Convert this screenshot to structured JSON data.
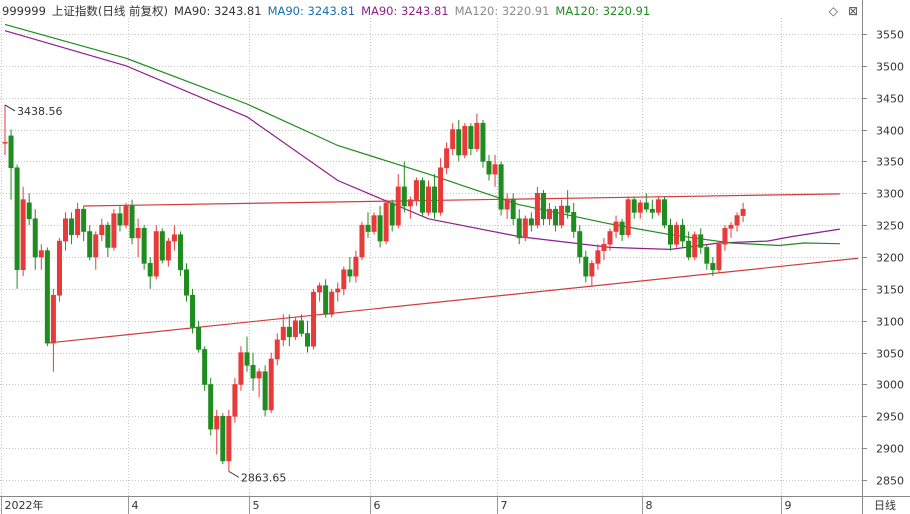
{
  "header": {
    "code": "999999",
    "name": "上证指数(日线 前复权)",
    "indicators": [
      {
        "label": "MA90: 3243.81",
        "color": "#333333"
      },
      {
        "label": "MA90: 3243.81",
        "color": "#1a6fb0"
      },
      {
        "label": "MA90: 3243.81",
        "color": "#8e1f8e"
      },
      {
        "label": "MA120: 3220.91",
        "color": "#8c8c8c"
      },
      {
        "label": "MA120: 3220.91",
        "color": "#1e8c1e"
      }
    ],
    "icons": [
      "diamond-icon",
      "close-icon"
    ]
  },
  "period_label": "日线",
  "chart_data": {
    "type": "candlestick",
    "ylim": [
      2825,
      3575
    ],
    "y_ticks": [
      2850,
      2900,
      2950,
      3000,
      3050,
      3100,
      3150,
      3200,
      3250,
      3300,
      3350,
      3400,
      3450,
      3500,
      3550
    ],
    "x_ticks": [
      "2022年",
      "4",
      "5",
      "6",
      "7",
      "8",
      "9"
    ],
    "x_tick_index": [
      0,
      21,
      41,
      61,
      82,
      106,
      129
    ],
    "bull_color": "#e83a3a",
    "bear_color": "#1e8c1e",
    "annotations": [
      {
        "text": "3438.56",
        "index": 0,
        "value": 3438.56
      },
      {
        "text": "2863.65",
        "index": 37,
        "value": 2863.65
      }
    ],
    "ohlc": [
      [
        3380,
        3438.56,
        3360,
        3380
      ],
      [
        3390,
        3400,
        3290,
        3340
      ],
      [
        3340,
        3345,
        3150,
        3180
      ],
      [
        3180,
        3310,
        3170,
        3290
      ],
      [
        3285,
        3300,
        3250,
        3260
      ],
      [
        3260,
        3275,
        3180,
        3200
      ],
      [
        3200,
        3220,
        3180,
        3210
      ],
      [
        3210,
        3215,
        3060,
        3065
      ],
      [
        3065,
        3150,
        3020,
        3140
      ],
      [
        3140,
        3230,
        3130,
        3225
      ],
      [
        3225,
        3270,
        3210,
        3260
      ],
      [
        3260,
        3270,
        3220,
        3235
      ],
      [
        3235,
        3285,
        3230,
        3275
      ],
      [
        3275,
        3280,
        3225,
        3240
      ],
      [
        3240,
        3250,
        3195,
        3200
      ],
      [
        3200,
        3240,
        3180,
        3235
      ],
      [
        3235,
        3260,
        3225,
        3250
      ],
      [
        3250,
        3255,
        3200,
        3215
      ],
      [
        3215,
        3275,
        3210,
        3268
      ],
      [
        3268,
        3280,
        3240,
        3250
      ],
      [
        3250,
        3285,
        3245,
        3280
      ],
      [
        3280,
        3290,
        3220,
        3230
      ],
      [
        3230,
        3260,
        3200,
        3245
      ],
      [
        3245,
        3250,
        3180,
        3190
      ],
      [
        3190,
        3200,
        3150,
        3170
      ],
      [
        3170,
        3250,
        3165,
        3240
      ],
      [
        3240,
        3245,
        3190,
        3195
      ],
      [
        3195,
        3230,
        3185,
        3225
      ],
      [
        3225,
        3250,
        3210,
        3235
      ],
      [
        3235,
        3240,
        3170,
        3180
      ],
      [
        3180,
        3190,
        3130,
        3140
      ],
      [
        3140,
        3150,
        3080,
        3090
      ],
      [
        3090,
        3100,
        3050,
        3055
      ],
      [
        3055,
        3060,
        2990,
        3000
      ],
      [
        3000,
        3010,
        2920,
        2930
      ],
      [
        2930,
        2960,
        2890,
        2950
      ],
      [
        2950,
        2955,
        2875,
        2880
      ],
      [
        2880,
        2960,
        2863.65,
        2950
      ],
      [
        2950,
        3010,
        2940,
        3000
      ],
      [
        3000,
        3060,
        2990,
        3050
      ],
      [
        3050,
        3075,
        3020,
        3030
      ],
      [
        3030,
        3050,
        2990,
        3010
      ],
      [
        3010,
        3025,
        2980,
        3020
      ],
      [
        3020,
        3030,
        2950,
        2960
      ],
      [
        2960,
        3050,
        2955,
        3040
      ],
      [
        3040,
        3080,
        3030,
        3070
      ],
      [
        3070,
        3110,
        3060,
        3090
      ],
      [
        3090,
        3110,
        3060,
        3075
      ],
      [
        3075,
        3105,
        3070,
        3100
      ],
      [
        3100,
        3110,
        3075,
        3080
      ],
      [
        3080,
        3100,
        3050,
        3060
      ],
      [
        3060,
        3150,
        3055,
        3145
      ],
      [
        3145,
        3160,
        3130,
        3155
      ],
      [
        3155,
        3165,
        3105,
        3110
      ],
      [
        3110,
        3150,
        3105,
        3145
      ],
      [
        3145,
        3160,
        3130,
        3150
      ],
      [
        3150,
        3185,
        3140,
        3180
      ],
      [
        3180,
        3200,
        3160,
        3170
      ],
      [
        3170,
        3210,
        3160,
        3200
      ],
      [
        3200,
        3255,
        3195,
        3250
      ],
      [
        3250,
        3270,
        3230,
        3240
      ],
      [
        3240,
        3270,
        3235,
        3265
      ],
      [
        3265,
        3280,
        3215,
        3225
      ],
      [
        3225,
        3290,
        3220,
        3285
      ],
      [
        3285,
        3290,
        3240,
        3250
      ],
      [
        3250,
        3330,
        3245,
        3310
      ],
      [
        3310,
        3350,
        3270,
        3280
      ],
      [
        3280,
        3295,
        3260,
        3290
      ],
      [
        3290,
        3325,
        3280,
        3320
      ],
      [
        3320,
        3325,
        3265,
        3270
      ],
      [
        3270,
        3320,
        3265,
        3310
      ],
      [
        3310,
        3330,
        3260,
        3270
      ],
      [
        3270,
        3355,
        3265,
        3340
      ],
      [
        3340,
        3380,
        3330,
        3370
      ],
      [
        3370,
        3410,
        3360,
        3400
      ],
      [
        3400,
        3415,
        3350,
        3360
      ],
      [
        3360,
        3410,
        3355,
        3405
      ],
      [
        3405,
        3410,
        3360,
        3370
      ],
      [
        3370,
        3425,
        3365,
        3410
      ],
      [
        3410,
        3415,
        3340,
        3350
      ],
      [
        3350,
        3360,
        3320,
        3330
      ],
      [
        3330,
        3360,
        3310,
        3345
      ],
      [
        3345,
        3350,
        3265,
        3275
      ],
      [
        3275,
        3300,
        3260,
        3290
      ],
      [
        3290,
        3300,
        3250,
        3260
      ],
      [
        3260,
        3275,
        3220,
        3230
      ],
      [
        3230,
        3265,
        3225,
        3260
      ],
      [
        3260,
        3270,
        3240,
        3250
      ],
      [
        3250,
        3310,
        3245,
        3300
      ],
      [
        3300,
        3305,
        3250,
        3260
      ],
      [
        3260,
        3285,
        3250,
        3275
      ],
      [
        3275,
        3280,
        3240,
        3250
      ],
      [
        3250,
        3290,
        3245,
        3280
      ],
      [
        3280,
        3305,
        3260,
        3270
      ],
      [
        3270,
        3285,
        3230,
        3240
      ],
      [
        3240,
        3250,
        3190,
        3200
      ],
      [
        3200,
        3210,
        3160,
        3170
      ],
      [
        3170,
        3195,
        3155,
        3190
      ],
      [
        3190,
        3220,
        3180,
        3210
      ],
      [
        3210,
        3230,
        3195,
        3220
      ],
      [
        3220,
        3245,
        3210,
        3240
      ],
      [
        3240,
        3265,
        3230,
        3255
      ],
      [
        3255,
        3260,
        3225,
        3235
      ],
      [
        3235,
        3295,
        3230,
        3290
      ],
      [
        3290,
        3295,
        3260,
        3270
      ],
      [
        3270,
        3290,
        3260,
        3285
      ],
      [
        3285,
        3300,
        3270,
        3275
      ],
      [
        3275,
        3290,
        3260,
        3270
      ],
      [
        3270,
        3295,
        3265,
        3290
      ],
      [
        3290,
        3295,
        3245,
        3250
      ],
      [
        3250,
        3260,
        3210,
        3220
      ],
      [
        3220,
        3255,
        3215,
        3250
      ],
      [
        3250,
        3260,
        3215,
        3225
      ],
      [
        3225,
        3240,
        3195,
        3200
      ],
      [
        3200,
        3240,
        3195,
        3235
      ],
      [
        3235,
        3245,
        3205,
        3215
      ],
      [
        3215,
        3220,
        3180,
        3190
      ],
      [
        3190,
        3200,
        3170,
        3180
      ],
      [
        3180,
        3225,
        3175,
        3220
      ],
      [
        3220,
        3250,
        3210,
        3245
      ],
      [
        3245,
        3255,
        3230,
        3250
      ],
      [
        3250,
        3270,
        3240,
        3265
      ],
      [
        3265,
        3285,
        3255,
        3275
      ]
    ],
    "ma90": [
      [
        0,
        3555
      ],
      [
        20,
        3500
      ],
      [
        40,
        3420
      ],
      [
        55,
        3320
      ],
      [
        70,
        3260
      ],
      [
        85,
        3232
      ],
      [
        100,
        3215
      ],
      [
        110,
        3212
      ],
      [
        118,
        3222
      ],
      [
        126,
        3225
      ],
      [
        130,
        3232
      ],
      [
        138,
        3243.81
      ]
    ],
    "ma120": [
      [
        0,
        3565
      ],
      [
        20,
        3512
      ],
      [
        40,
        3440
      ],
      [
        55,
        3375
      ],
      [
        70,
        3330
      ],
      [
        85,
        3282
      ],
      [
        100,
        3252
      ],
      [
        110,
        3235
      ],
      [
        120,
        3222
      ],
      [
        128,
        3218
      ],
      [
        132,
        3222
      ],
      [
        138,
        3220.91
      ]
    ],
    "trendlines": [
      {
        "from": [
          13,
          3280
        ],
        "to": [
          138,
          3299
        ]
      },
      {
        "from": [
          7,
          3065
        ],
        "to": [
          141,
          3198
        ]
      }
    ]
  }
}
